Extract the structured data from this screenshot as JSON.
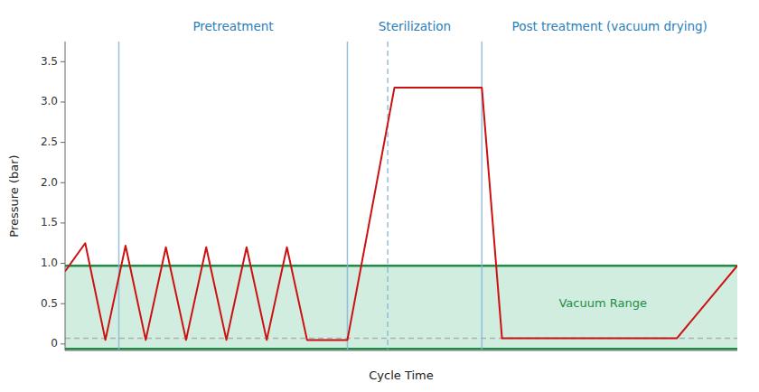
{
  "chart_data": {
    "type": "line",
    "xlabel": "Cycle Time",
    "ylabel": "Pressure (bar)",
    "xlim": [
      0,
      100
    ],
    "ylim": [
      -0.08,
      3.75
    ],
    "yticks": [
      0,
      0.5,
      {
        "value": 1.0,
        "label": "1.0"
      },
      1.5,
      {
        "value": 2.0,
        "label": "2.0"
      },
      2.5,
      {
        "value": 3.0,
        "label": "3.0"
      },
      3.5
    ],
    "tick_labels": "y",
    "grid": false,
    "x": [
      0,
      3,
      6,
      9,
      12,
      15,
      18,
      21,
      24,
      27,
      30,
      33,
      36,
      42,
      49,
      59,
      62,
      65,
      88,
      91,
      100
    ],
    "values": [
      0.9,
      1.25,
      0.05,
      1.22,
      0.05,
      1.2,
      0.05,
      1.2,
      0.05,
      1.2,
      0.05,
      1.2,
      0.05,
      0.05,
      3.18,
      3.18,
      3.18,
      0.07,
      0.07,
      0.07,
      0.97
    ],
    "color": "#cc1111",
    "bands": [
      {
        "y0": -0.06,
        "y1": 0.97,
        "color": "#d0ede0"
      }
    ],
    "hlines": [
      {
        "y": 0.97,
        "color": "#1f8c45",
        "line_style": "solid"
      },
      {
        "y": -0.06,
        "color": "#1f8c45",
        "line_style": "solid"
      },
      {
        "y": 0.07,
        "color": "#b0b0b0",
        "line_style": "dashed"
      }
    ],
    "vlines": [
      {
        "x": 8,
        "color": "#85b5d9",
        "line_style": "solid"
      },
      {
        "x": 42,
        "color": "#85b5d9",
        "line_style": "solid"
      },
      {
        "x": 62,
        "color": "#85b5d9",
        "line_style": "solid"
      },
      {
        "x": 48,
        "color": "#85b5d9",
        "line_style": "dashed"
      }
    ],
    "annotations": [
      {
        "text": "Vacuum Range",
        "x": 80,
        "y": 0.5,
        "color": "#1f8c45"
      }
    ],
    "phase_labels": [
      {
        "text": "Pretreatment",
        "x": 25,
        "color": "#2980b9"
      },
      {
        "text": "Sterilization",
        "x": 52,
        "color": "#2980b9"
      },
      {
        "text": "Post treatment (vacuum drying)",
        "x": 81,
        "color": "#2980b9"
      }
    ]
  }
}
